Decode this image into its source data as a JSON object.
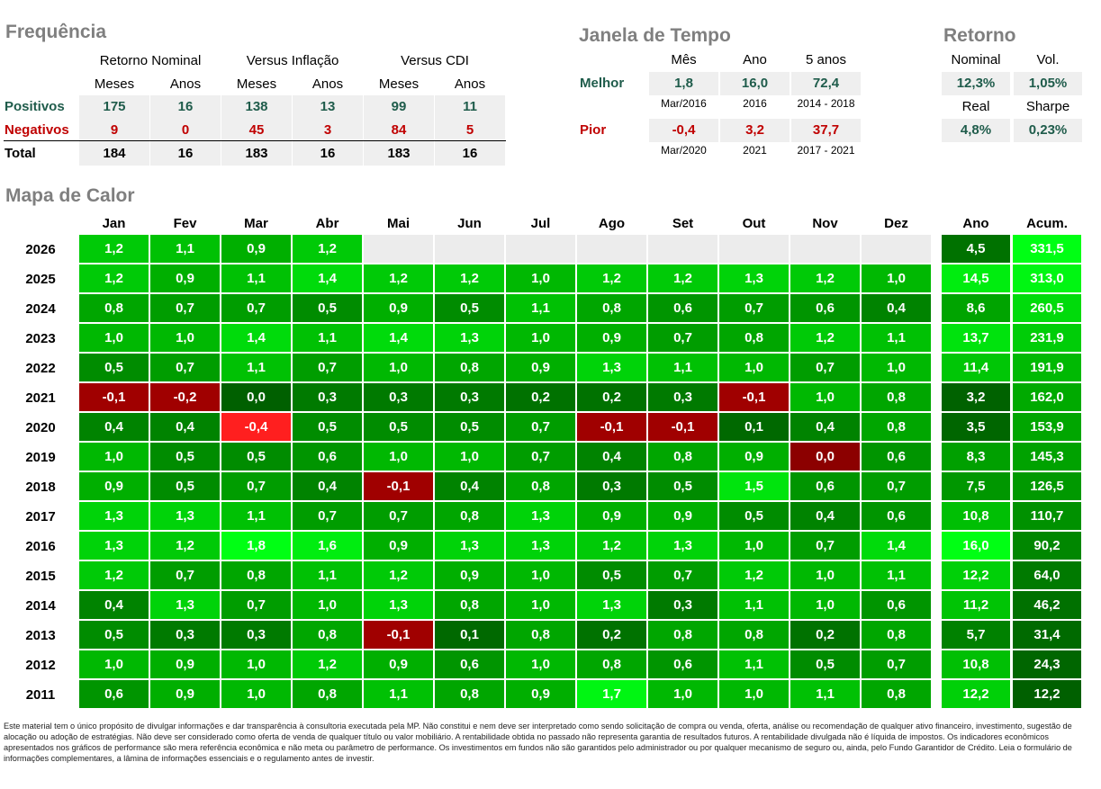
{
  "frequencia": {
    "title": "Frequência",
    "groups": [
      "Retorno Nominal",
      "Versus Inflação",
      "Versus CDI"
    ],
    "subheaders": [
      "Meses",
      "Anos",
      "Meses",
      "Anos",
      "Meses",
      "Anos"
    ],
    "rows": [
      {
        "label": "Positivos",
        "values": [
          "175",
          "16",
          "138",
          "13",
          "99",
          "11"
        ]
      },
      {
        "label": "Negativos",
        "values": [
          "9",
          "0",
          "45",
          "3",
          "84",
          "5"
        ]
      },
      {
        "label": "Total",
        "values": [
          "184",
          "16",
          "183",
          "16",
          "183",
          "16"
        ]
      }
    ],
    "colors": {
      "positivos": "#1f5c4b",
      "negativos": "#c00000",
      "total": "#000000"
    }
  },
  "janela": {
    "title": "Janela de Tempo",
    "headers": [
      "Mês",
      "Ano",
      "5 anos"
    ],
    "melhor": {
      "label": "Melhor",
      "values": [
        "1,8",
        "16,0",
        "72,4"
      ],
      "dates": [
        "Mar/2016",
        "2016",
        "2014 - 2018"
      ]
    },
    "pior": {
      "label": "Pior",
      "values": [
        "-0,4",
        "3,2",
        "37,7"
      ],
      "dates": [
        "Mar/2020",
        "2021",
        "2017 - 2021"
      ]
    }
  },
  "retorno": {
    "title": "Retorno",
    "headers1": [
      "Nominal",
      "Vol."
    ],
    "values1": [
      "12,3%",
      "1,05%"
    ],
    "headers2": [
      "Real",
      "Sharpe"
    ],
    "values2": [
      "4,8%",
      "0,23%"
    ]
  },
  "chart_data": {
    "type": "heatmap",
    "title": "Mapa de Calor",
    "months": [
      "Jan",
      "Fev",
      "Mar",
      "Abr",
      "Mai",
      "Jun",
      "Jul",
      "Ago",
      "Set",
      "Out",
      "Nov",
      "Dez"
    ],
    "summary_cols": [
      "Ano",
      "Acum."
    ],
    "rows": [
      {
        "year": "2026",
        "values": [
          1.2,
          1.1,
          0.9,
          1.2,
          null,
          null,
          null,
          null,
          null,
          null,
          null,
          null
        ],
        "ano": 4.5,
        "acum": 331.5
      },
      {
        "year": "2025",
        "values": [
          1.2,
          0.9,
          1.1,
          1.4,
          1.2,
          1.2,
          1.0,
          1.2,
          1.2,
          1.3,
          1.2,
          1.0
        ],
        "ano": 14.5,
        "acum": 313.0
      },
      {
        "year": "2024",
        "values": [
          0.8,
          0.7,
          0.7,
          0.5,
          0.9,
          0.5,
          1.1,
          0.8,
          0.6,
          0.7,
          0.6,
          0.4
        ],
        "ano": 8.6,
        "acum": 260.5
      },
      {
        "year": "2023",
        "values": [
          1.0,
          1.0,
          1.4,
          1.1,
          1.4,
          1.3,
          1.0,
          0.9,
          0.7,
          0.8,
          1.2,
          1.1
        ],
        "ano": 13.7,
        "acum": 231.9
      },
      {
        "year": "2022",
        "values": [
          0.5,
          0.7,
          1.1,
          0.7,
          1.0,
          0.8,
          0.9,
          1.3,
          1.1,
          1.0,
          0.7,
          1.0
        ],
        "ano": 11.4,
        "acum": 191.9
      },
      {
        "year": "2021",
        "values": [
          -0.1,
          -0.2,
          0.0,
          0.3,
          0.3,
          0.3,
          0.2,
          0.2,
          0.3,
          -0.1,
          1.0,
          0.8
        ],
        "ano": 3.2,
        "acum": 162.0
      },
      {
        "year": "2020",
        "values": [
          0.4,
          0.4,
          -0.4,
          0.5,
          0.5,
          0.5,
          0.7,
          -0.1,
          -0.1,
          0.1,
          0.4,
          0.8
        ],
        "ano": 3.5,
        "acum": 153.9
      },
      {
        "year": "2019",
        "values": [
          1.0,
          0.5,
          0.5,
          0.6,
          1.0,
          1.0,
          0.7,
          0.4,
          0.8,
          0.9,
          0.0,
          0.6
        ],
        "ano": 8.3,
        "acum": 145.3
      },
      {
        "year": "2018",
        "values": [
          0.9,
          0.5,
          0.7,
          0.4,
          -0.1,
          0.4,
          0.8,
          0.3,
          0.5,
          1.5,
          0.6,
          0.7
        ],
        "ano": 7.5,
        "acum": 126.5
      },
      {
        "year": "2017",
        "values": [
          1.3,
          1.3,
          1.1,
          0.7,
          0.7,
          0.8,
          1.3,
          0.9,
          0.9,
          0.5,
          0.4,
          0.6
        ],
        "ano": 10.8,
        "acum": 110.7
      },
      {
        "year": "2016",
        "values": [
          1.3,
          1.2,
          1.8,
          1.6,
          0.9,
          1.3,
          1.3,
          1.2,
          1.3,
          1.0,
          0.7,
          1.4
        ],
        "ano": 16.0,
        "acum": 90.2
      },
      {
        "year": "2015",
        "values": [
          1.2,
          0.7,
          0.8,
          1.1,
          1.2,
          0.9,
          1.0,
          0.5,
          0.7,
          1.2,
          1.0,
          1.1
        ],
        "ano": 12.2,
        "acum": 64.0
      },
      {
        "year": "2014",
        "values": [
          0.4,
          1.3,
          0.7,
          1.0,
          1.3,
          0.8,
          1.0,
          1.3,
          0.3,
          1.1,
          1.0,
          0.6
        ],
        "ano": 11.2,
        "acum": 46.2
      },
      {
        "year": "2013",
        "values": [
          0.5,
          0.3,
          0.3,
          0.8,
          -0.1,
          0.1,
          0.8,
          0.2,
          0.8,
          0.8,
          0.2,
          0.8
        ],
        "ano": 5.7,
        "acum": 31.4
      },
      {
        "year": "2012",
        "values": [
          1.0,
          0.9,
          1.0,
          1.2,
          0.9,
          0.6,
          1.0,
          0.8,
          0.6,
          1.1,
          0.5,
          0.7
        ],
        "ano": 10.8,
        "acum": 24.3
      },
      {
        "year": "2011",
        "values": [
          0.6,
          0.9,
          1.0,
          0.8,
          1.1,
          0.8,
          0.9,
          1.7,
          1.0,
          1.0,
          1.1,
          0.8
        ],
        "ano": 12.2,
        "acum": 12.2
      }
    ],
    "colors": {
      "empty": "#ececec",
      "negative": "#a00000",
      "negative_strong": "#ff1f1f",
      "zero_neg": "#8c0000"
    }
  },
  "disclaimer": "Este material tem o único propósito de divulgar informações e dar transparência à consultoria executada pela MP. Não constitui e nem deve ser interpretado como sendo solicitação de compra ou venda, oferta, análise ou recomendação de qualquer ativo financeiro, investimento, sugestão de alocação ou adoção de estratégias. Não deve ser considerado como oferta de venda de qualquer título ou valor mobiliário. A rentabilidade obtida no passado não representa garantia de resultados futuros. A rentabilidade divulgada não é líquida de impostos. Os indicadores econômicos apresentados nos gráficos de performance são mera referência econômica e não meta ou parâmetro de performance. Os investimentos em fundos não são garantidos pelo administrador ou por qualquer mecanismo de seguro ou, ainda, pelo Fundo Garantidor de Crédito. Leia o formulário de informações complementares, a lâmina de informações essenciais e o regulamento antes de investir."
}
